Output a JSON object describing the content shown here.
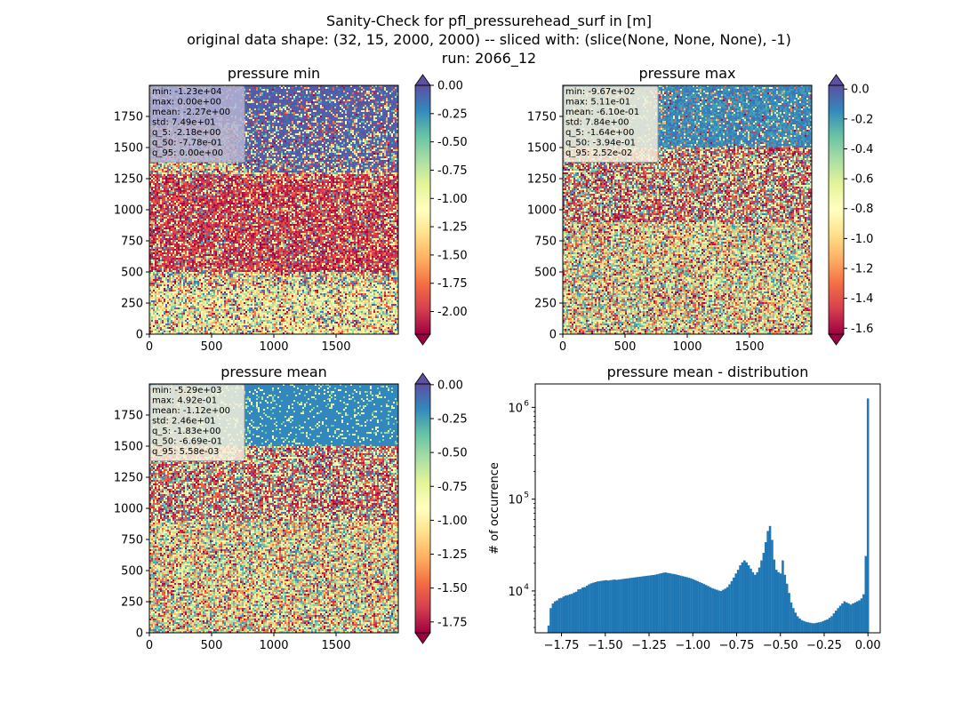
{
  "figure": {
    "title_lines": [
      "Sanity-Check for pfl_pressurehead_surf in [m]",
      "original data shape: (32, 15, 2000, 2000) -- sliced with: (slice(None, None, None), -1)",
      "run: 2066_12"
    ]
  },
  "colormap": {
    "name": "Spectral",
    "stops": [
      "#9e0142",
      "#d53e4f",
      "#f46d43",
      "#fdae61",
      "#fee08b",
      "#ffffbf",
      "#e6f598",
      "#abdda4",
      "#66c2a5",
      "#3288bd",
      "#5e4fa2"
    ]
  },
  "chart_data": [
    {
      "type": "heatmap",
      "title": "pressure min",
      "xticks": [
        "0",
        "500",
        "1000",
        "1500"
      ],
      "yticks": [
        "0",
        "250",
        "500",
        "750",
        "1000",
        "1250",
        "1500",
        "1750"
      ],
      "xlim": [
        0,
        2000
      ],
      "ylim": [
        0,
        2000
      ],
      "colorbar": {
        "vmin": -2.2,
        "vmax": 0.0,
        "ticks": [
          "-2.00",
          "-1.75",
          "-1.50",
          "-1.25",
          "-1.00",
          "-0.75",
          "-0.50",
          "-0.25",
          "0.00"
        ],
        "tick_values": [
          -2.0,
          -1.75,
          -1.5,
          -1.25,
          -1.0,
          -0.75,
          -0.5,
          -0.25,
          0.0
        ],
        "extend": "both",
        "under_color": "#9e0142",
        "over_color": "#5e4fa2"
      },
      "stats": [
        "min: -1.23e+04",
        "max: 0.00e+00",
        "mean: -2.27e+00",
        "std: 7.49e+01",
        "q_5: -2.18e+00",
        "q_50: -7.78e-01",
        "q_95: 0.00e+00"
      ],
      "stats_box_color": "#b3b3d6"
    },
    {
      "type": "heatmap",
      "title": "pressure max",
      "xticks": [
        "0",
        "500",
        "1000",
        "1500"
      ],
      "yticks": [
        "0",
        "250",
        "500",
        "750",
        "1000",
        "1250",
        "1500",
        "1750"
      ],
      "xlim": [
        0,
        2000
      ],
      "ylim": [
        0,
        2000
      ],
      "colorbar": {
        "vmin": -1.64,
        "vmax": 0.025,
        "ticks": [
          "-1.6",
          "-1.4",
          "-1.2",
          "-1.0",
          "-0.8",
          "-0.6",
          "-0.4",
          "-0.2",
          "0.0"
        ],
        "tick_values": [
          -1.6,
          -1.4,
          -1.2,
          -1.0,
          -0.8,
          -0.6,
          -0.4,
          -0.2,
          0.0
        ],
        "extend": "both",
        "under_color": "#9e0142",
        "over_color": "#5e4fa2"
      },
      "stats": [
        "min: -9.67e+02",
        "max: 5.11e-01",
        "mean: -6.10e-01",
        "std: 7.84e+00",
        "q_5: -1.64e+00",
        "q_50: -3.94e-01",
        "q_95: 2.52e-02"
      ],
      "stats_box_color": "#f4f0dc"
    },
    {
      "type": "heatmap",
      "title": "pressure mean",
      "xticks": [
        "0",
        "500",
        "1000",
        "1500"
      ],
      "yticks": [
        "0",
        "250",
        "500",
        "750",
        "1000",
        "1250",
        "1500",
        "1750"
      ],
      "xlim": [
        0,
        2000
      ],
      "ylim": [
        0,
        2000
      ],
      "colorbar": {
        "vmin": -1.83,
        "vmax": 0.0056,
        "ticks": [
          "-1.75",
          "-1.50",
          "-1.25",
          "-1.00",
          "-0.75",
          "-0.50",
          "-0.25",
          "0.00"
        ],
        "tick_values": [
          -1.75,
          -1.5,
          -1.25,
          -1.0,
          -0.75,
          -0.5,
          -0.25,
          0.0
        ],
        "extend": "both",
        "under_color": "#9e0142",
        "over_color": "#5e4fa2"
      },
      "stats": [
        "min: -5.29e+03",
        "max: 4.92e-01",
        "mean: -1.12e+00",
        "std: 2.46e+01",
        "q_5: -1.83e+00",
        "q_50: -6.69e-01",
        "q_95: 5.58e-03"
      ],
      "stats_box_color": "#f4f0dc"
    },
    {
      "type": "bar",
      "title": "pressure mean - distribution",
      "ylabel": "# of occurrence",
      "xlabel": "",
      "yscale": "log",
      "xlim": [
        -1.9,
        0.07
      ],
      "ylim": [
        3500,
        1800000
      ],
      "xticks": [
        "−1.75",
        "−1.50",
        "−1.25",
        "−1.00",
        "−0.75",
        "−0.50",
        "−0.25",
        "0.00"
      ],
      "xtick_values": [
        -1.75,
        -1.5,
        -1.25,
        -1.0,
        -0.75,
        -0.5,
        -0.25,
        0.0
      ],
      "yticks": [
        "10",
        "10",
        "10"
      ],
      "ytick_exponents": [
        "4",
        "5",
        "6"
      ],
      "ytick_values": [
        10000,
        100000,
        1000000
      ],
      "bar_color": "#1f77b4",
      "bin_range": [
        -1.83,
        0.0056
      ],
      "bin_count": 150,
      "counts_per_bin": "see values",
      "values": [
        4200,
        6500,
        7300,
        7700,
        7900,
        8300,
        8400,
        8700,
        8900,
        9000,
        9200,
        9300,
        9600,
        9800,
        10400,
        10500,
        10900,
        11000,
        11400,
        11800,
        12100,
        12300,
        12500,
        12700,
        12800,
        12900,
        13000,
        13100,
        13000,
        13100,
        13200,
        13300,
        13200,
        13300,
        13400,
        13500,
        13600,
        13700,
        13800,
        13900,
        14000,
        14100,
        14200,
        14300,
        14400,
        14500,
        14600,
        14700,
        14800,
        14900,
        15000,
        15200,
        15400,
        15600,
        15800,
        15900,
        15700,
        15600,
        15400,
        15300,
        15100,
        14900,
        14700,
        14500,
        14300,
        14100,
        13900,
        13700,
        13400,
        13100,
        12800,
        12500,
        12200,
        11900,
        11600,
        11300,
        11000,
        10700,
        10500,
        10300,
        10100,
        10000,
        10300,
        10600,
        11000,
        11800,
        12800,
        14000,
        15500,
        17000,
        19000,
        20500,
        21500,
        20500,
        19000,
        17500,
        16000,
        15000,
        16000,
        18000,
        21500,
        26000,
        34000,
        45000,
        51000,
        36000,
        22000,
        17000,
        16000,
        15500,
        21500,
        15000,
        12000,
        9500,
        7500,
        6500,
        5800,
        5300,
        5000,
        4800,
        4700,
        4600,
        4550,
        4500,
        4450,
        4450,
        4500,
        4550,
        4600,
        4700,
        4800,
        4900,
        5100,
        5300,
        5700,
        6100,
        6500,
        6900,
        7300,
        7700,
        7500,
        7300,
        7100,
        7300,
        7500,
        7700,
        7900,
        8300,
        9200,
        24000,
        1250000
      ]
    }
  ]
}
